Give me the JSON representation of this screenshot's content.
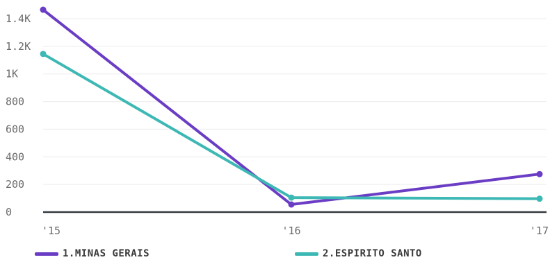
{
  "chart_data": {
    "type": "line",
    "x": [
      "'15",
      "'16",
      "'17"
    ],
    "y_ticks": [
      "0",
      "200",
      "400",
      "600",
      "800",
      "1K",
      "1.2K",
      "1.4K"
    ],
    "ylim": [
      0,
      1400
    ],
    "grid": true,
    "legend_position": "bottom",
    "series": [
      {
        "name": "1.MINAS GERAIS",
        "color": "#6a3dc4",
        "values": [
          1465,
          55,
          275
        ]
      },
      {
        "name": "2.ESPIRITO SANTO",
        "color": "#3db8b4",
        "values": [
          1145,
          105,
          97
        ]
      }
    ]
  }
}
